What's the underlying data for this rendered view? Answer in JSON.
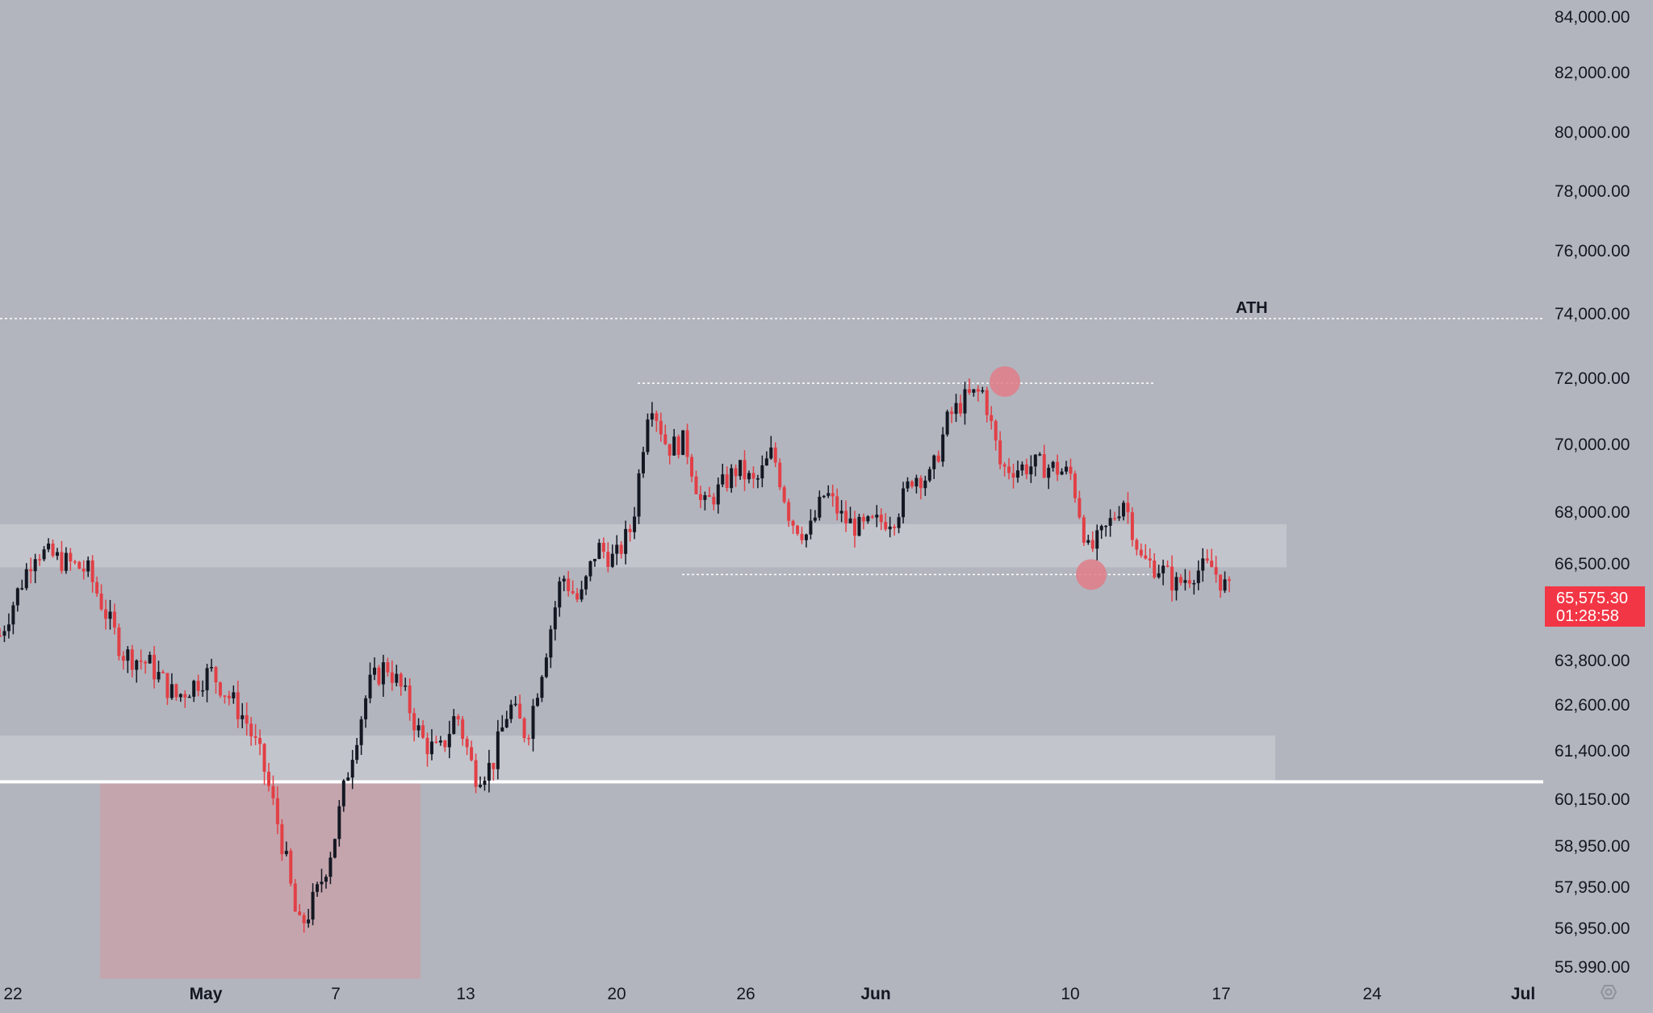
{
  "colors": {
    "background": "#b2b5be",
    "bull": "#131722",
    "bear": "#e23f46",
    "zone": "#c3c5cc",
    "demand_box": "#c4a5ad",
    "marker": "#e07c88",
    "price_tag": "#f23645",
    "level_line": "#ffffff"
  },
  "chart_data": {
    "type": "candlestick",
    "x_ticks": [
      {
        "label": "22",
        "bold": false
      },
      {
        "label": "May",
        "bold": true
      },
      {
        "label": "7",
        "bold": false
      },
      {
        "label": "13",
        "bold": false
      },
      {
        "label": "20",
        "bold": false
      },
      {
        "label": "26",
        "bold": false
      },
      {
        "label": "Jun",
        "bold": true
      },
      {
        "label": "10",
        "bold": false
      },
      {
        "label": "17",
        "bold": false
      },
      {
        "label": "24",
        "bold": false
      },
      {
        "label": "Jul",
        "bold": true
      }
    ],
    "y_ticks": [
      "84,000.00",
      "82,000.00",
      "80,000.00",
      "78,000.00",
      "76,000.00",
      "74,000.00",
      "72,000.00",
      "70,000.00",
      "68,000.00",
      "66,500.00",
      "63,800.00",
      "62,600.00",
      "61,400.00",
      "60,150.00",
      "58,950.00",
      "57,950.00",
      "56,950.00",
      "55.990.00"
    ],
    "y_tick_values": [
      84000,
      82000,
      80000,
      78000,
      76000,
      74000,
      72000,
      70000,
      68000,
      66500,
      63800,
      62600,
      61400,
      60150,
      58950,
      57950,
      56950,
      55990
    ],
    "current_price": "65,575.30",
    "countdown": "01:28:58",
    "annotations": {
      "ath_label": "ATH",
      "ath_level": 73850,
      "range_high": 71850,
      "range_low": 66200,
      "support_level": 60600,
      "upper_zone": [
        66400,
        67650
      ],
      "lower_zone": [
        60600,
        61800
      ],
      "demand_box_price": [
        55700,
        60600
      ]
    },
    "close_path": [
      [
        0,
        64500
      ],
      [
        4,
        66900
      ],
      [
        10,
        66300
      ],
      [
        14,
        64000
      ],
      [
        17,
        63700
      ],
      [
        20,
        62800
      ],
      [
        24,
        63500
      ],
      [
        28,
        62200
      ],
      [
        30,
        61000
      ],
      [
        32,
        59200
      ],
      [
        34,
        56900
      ],
      [
        36,
        57700
      ],
      [
        38,
        59100
      ],
      [
        40,
        61300
      ],
      [
        42,
        63100
      ],
      [
        44,
        63700
      ],
      [
        46,
        62900
      ],
      [
        48,
        61700
      ],
      [
        50,
        61300
      ],
      [
        52,
        62400
      ],
      [
        54,
        60800
      ],
      [
        56,
        61000
      ],
      [
        58,
        62600
      ],
      [
        60,
        61800
      ],
      [
        62,
        63900
      ],
      [
        64,
        66200
      ],
      [
        66,
        65400
      ],
      [
        68,
        67000
      ],
      [
        70,
        66600
      ],
      [
        72,
        67600
      ],
      [
        74,
        71500
      ],
      [
        76,
        69900
      ],
      [
        78,
        70100
      ],
      [
        80,
        68100
      ],
      [
        82,
        68700
      ],
      [
        84,
        69300
      ],
      [
        86,
        68800
      ],
      [
        88,
        69800
      ],
      [
        90,
        67800
      ],
      [
        92,
        67300
      ],
      [
        94,
        68600
      ],
      [
        96,
        67800
      ],
      [
        98,
        67500
      ],
      [
        100,
        67700
      ],
      [
        102,
        67900
      ],
      [
        104,
        69100
      ],
      [
        106,
        69000
      ],
      [
        108,
        70800
      ],
      [
        110,
        71400
      ],
      [
        112,
        71600
      ],
      [
        114,
        69300
      ],
      [
        116,
        69300
      ],
      [
        118,
        69400
      ],
      [
        120,
        69300
      ],
      [
        122,
        69100
      ],
      [
        124,
        66800
      ],
      [
        126,
        67500
      ],
      [
        128,
        68400
      ],
      [
        130,
        66600
      ],
      [
        132,
        66400
      ],
      [
        134,
        65900
      ],
      [
        136,
        66300
      ],
      [
        138,
        66400
      ],
      [
        140,
        65700
      ]
    ]
  }
}
